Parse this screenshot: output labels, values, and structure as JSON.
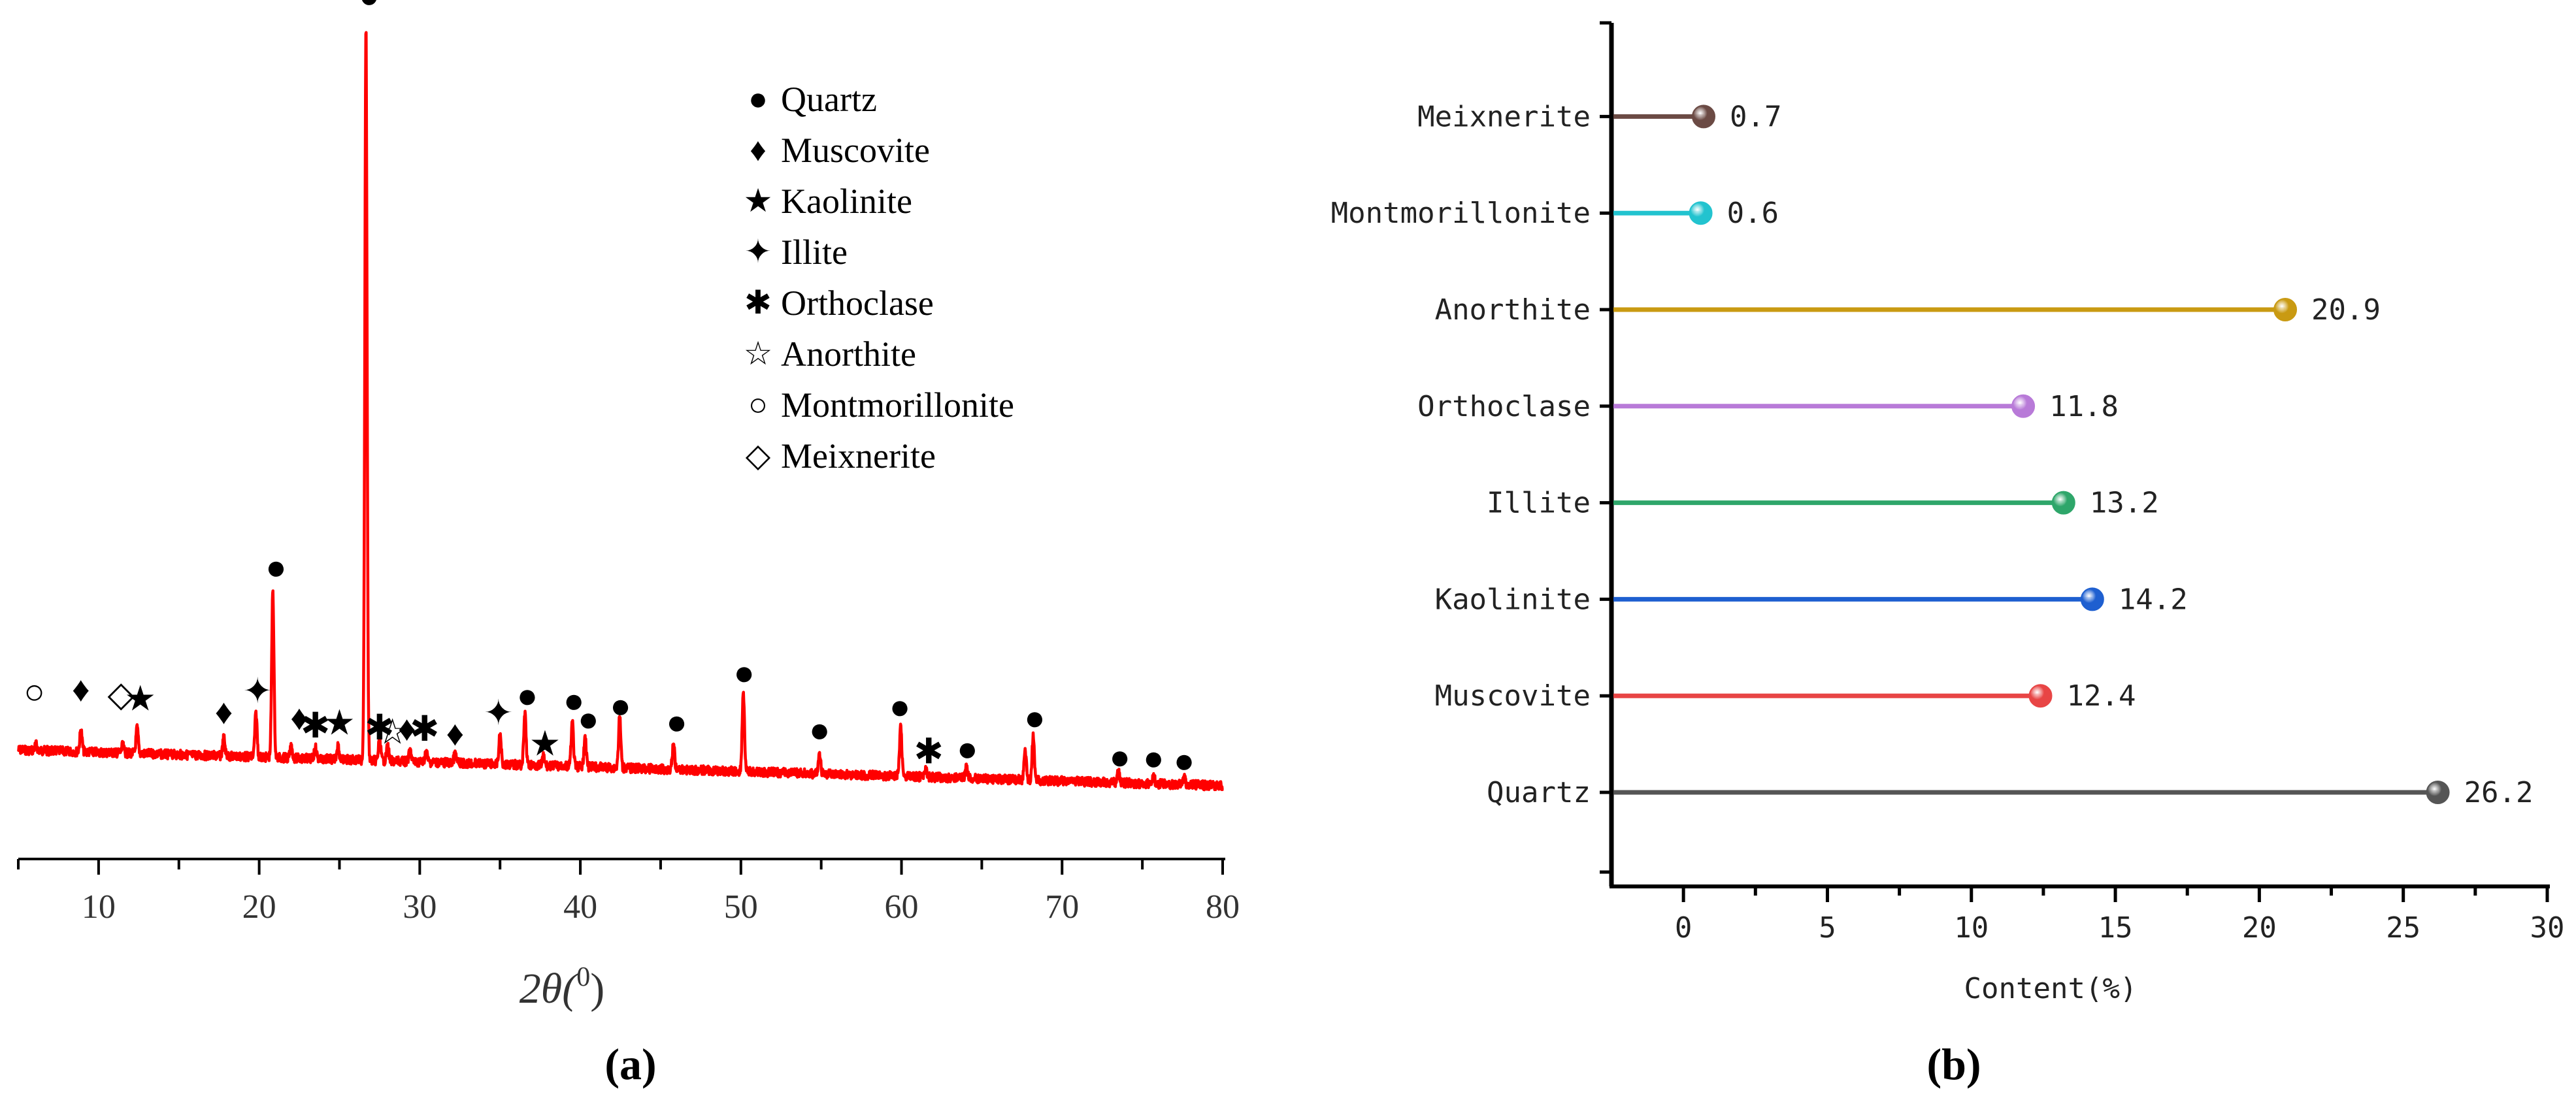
{
  "colors": {
    "xrd_line": "#ff0000",
    "axis": "#000000",
    "series": [
      "#555555",
      "#e84545",
      "#1e5fd0",
      "#2ea66a",
      "#b87ad8",
      "#c99a12",
      "#22c3cf",
      "#6b4a44"
    ]
  },
  "chart_data": [
    {
      "type": "line",
      "panel_label": "a",
      "panel_label_display": "(a)",
      "title": "",
      "xlabel_main": "2θ(",
      "xlabel_sup": "0",
      "xlabel_close": ")",
      "xlim": [
        5,
        80
      ],
      "xticks": [
        "10",
        "20",
        "30",
        "40",
        "50",
        "60",
        "70",
        "80"
      ],
      "ylabel": "",
      "legend": [
        {
          "symbol": "●",
          "label": "Quartz"
        },
        {
          "symbol": "♦",
          "label": "Muscovite"
        },
        {
          "symbol": "★",
          "label": "Kaolinite"
        },
        {
          "symbol": "✦",
          "label": "Illite"
        },
        {
          "symbol": "✱",
          "label": "Orthoclase"
        },
        {
          "symbol": "☆",
          "label": "Anorthite"
        },
        {
          "symbol": "○",
          "label": "Montmorillonite"
        },
        {
          "symbol": "◇",
          "label": "Meixnerite"
        }
      ],
      "legend_position": "top-right",
      "peaks": [
        {
          "x": 6.1,
          "h": 0.008,
          "mineral": "Montmorillonite"
        },
        {
          "x": 8.9,
          "h": 0.03,
          "mineral": "Muscovite"
        },
        {
          "x": 11.5,
          "h": 0.01,
          "mineral": "Meixnerite"
        },
        {
          "x": 12.4,
          "h": 0.035,
          "mineral": "Kaolinite"
        },
        {
          "x": 17.8,
          "h": 0.025,
          "mineral": "Muscovite"
        },
        {
          "x": 19.8,
          "h": 0.06,
          "mineral": "Illite"
        },
        {
          "x": 20.85,
          "h": 0.23,
          "mineral": "Quartz"
        },
        {
          "x": 22.0,
          "h": 0.015,
          "mineral": "Illite"
        },
        {
          "x": 23.5,
          "h": 0.015,
          "mineral": "Orthoclase"
        },
        {
          "x": 24.9,
          "h": 0.02,
          "mineral": "Kaolinite"
        },
        {
          "x": 26.65,
          "h": 1.0,
          "mineral": "Quartz"
        },
        {
          "x": 27.5,
          "h": 0.03,
          "mineral": "Orthoclase"
        },
        {
          "x": 28.0,
          "h": 0.02,
          "mineral": "Anorthite"
        },
        {
          "x": 29.4,
          "h": 0.015,
          "mineral": "Illite"
        },
        {
          "x": 30.4,
          "h": 0.015,
          "mineral": "Orthoclase"
        },
        {
          "x": 32.2,
          "h": 0.012,
          "mineral": "Muscovite"
        },
        {
          "x": 35.0,
          "h": 0.04,
          "mineral": "Illite"
        },
        {
          "x": 36.55,
          "h": 0.07,
          "mineral": "Quartz"
        },
        {
          "x": 37.7,
          "h": 0.012,
          "mineral": "Kaolinite"
        },
        {
          "x": 39.5,
          "h": 0.06,
          "mineral": "Quartz"
        },
        {
          "x": 40.3,
          "h": 0.04,
          "mineral": "Quartz"
        },
        {
          "x": 42.45,
          "h": 0.07,
          "mineral": "Quartz"
        },
        {
          "x": 45.8,
          "h": 0.035,
          "mineral": "Quartz"
        },
        {
          "x": 50.15,
          "h": 0.11,
          "mineral": "Quartz"
        },
        {
          "x": 54.9,
          "h": 0.025,
          "mineral": "Quartz"
        },
        {
          "x": 59.95,
          "h": 0.07,
          "mineral": "Quartz"
        },
        {
          "x": 61.5,
          "h": 0.012,
          "mineral": "Orthoclase"
        },
        {
          "x": 64.05,
          "h": 0.015,
          "mineral": "Quartz"
        },
        {
          "x": 67.7,
          "h": 0.04,
          "mineral": "Quartz"
        },
        {
          "x": 68.2,
          "h": 0.06,
          "mineral": "Quartz"
        },
        {
          "x": 73.5,
          "h": 0.015,
          "mineral": "Quartz"
        },
        {
          "x": 75.7,
          "h": 0.01,
          "mineral": "Quartz"
        },
        {
          "x": 77.6,
          "h": 0.01,
          "mineral": "Quartz"
        }
      ],
      "markers": [
        {
          "x": 6.0,
          "symbol": "○",
          "level": 0.08
        },
        {
          "x": 8.9,
          "symbol": "♦",
          "level": 0.085
        },
        {
          "x": 11.4,
          "symbol": "◇",
          "level": 0.08
        },
        {
          "x": 12.6,
          "symbol": "★",
          "level": 0.075
        },
        {
          "x": 17.8,
          "symbol": "♦",
          "level": 0.06
        },
        {
          "x": 19.9,
          "symbol": "✦",
          "level": 0.09
        },
        {
          "x": 21.05,
          "symbol": "●",
          "level": 0.26
        },
        {
          "x": 22.5,
          "symbol": "♦",
          "level": 0.055
        },
        {
          "x": 23.5,
          "symbol": "✱",
          "level": 0.045
        },
        {
          "x": 25.0,
          "symbol": "★",
          "level": 0.05
        },
        {
          "x": 26.85,
          "symbol": "●",
          "level": 1.045
        },
        {
          "x": 27.5,
          "symbol": "✱",
          "level": 0.045
        },
        {
          "x": 28.3,
          "symbol": "☆",
          "level": 0.04
        },
        {
          "x": 29.2,
          "symbol": "♦",
          "level": 0.045
        },
        {
          "x": 30.3,
          "symbol": "✱",
          "level": 0.045
        },
        {
          "x": 32.2,
          "symbol": "♦",
          "level": 0.04
        },
        {
          "x": 34.9,
          "symbol": "✦",
          "level": 0.07
        },
        {
          "x": 36.7,
          "symbol": "●",
          "level": 0.095
        },
        {
          "x": 37.8,
          "symbol": "★",
          "level": 0.03
        },
        {
          "x": 39.6,
          "symbol": "●",
          "level": 0.09
        },
        {
          "x": 40.5,
          "symbol": "●",
          "level": 0.065
        },
        {
          "x": 42.5,
          "symbol": "●",
          "level": 0.085
        },
        {
          "x": 46.0,
          "symbol": "●",
          "level": 0.065
        },
        {
          "x": 50.2,
          "symbol": "●",
          "level": 0.135
        },
        {
          "x": 54.9,
          "symbol": "●",
          "level": 0.06
        },
        {
          "x": 59.9,
          "symbol": "●",
          "level": 0.095
        },
        {
          "x": 61.7,
          "symbol": "✱",
          "level": 0.035
        },
        {
          "x": 64.1,
          "symbol": "●",
          "level": 0.04
        },
        {
          "x": 68.3,
          "symbol": "●",
          "level": 0.085
        },
        {
          "x": 73.6,
          "symbol": "●",
          "level": 0.035
        },
        {
          "x": 75.7,
          "symbol": "●",
          "level": 0.035
        },
        {
          "x": 77.6,
          "symbol": "●",
          "level": 0.033
        }
      ]
    },
    {
      "type": "bar",
      "style": "lollipop",
      "orientation": "horizontal",
      "panel_label": "b",
      "panel_label_display": "(b)",
      "title": "",
      "xlabel": "Content(%)",
      "ylabel": "",
      "xlim": [
        -2.5,
        30
      ],
      "xticks": [
        "0",
        "5",
        "10",
        "15",
        "20",
        "25",
        "30"
      ],
      "categories": [
        "Quartz",
        "Muscovite",
        "Kaolinite",
        "Illite",
        "Orthoclase",
        "Anorthite",
        "Montmorillonite",
        "Meixnerite"
      ],
      "values": [
        26.2,
        12.4,
        14.2,
        13.2,
        11.8,
        20.9,
        0.6,
        0.7
      ],
      "value_labels": [
        "26.2",
        "12.4",
        "14.2",
        "13.2",
        "11.8",
        "20.9",
        "0.6",
        "0.7"
      ]
    }
  ]
}
